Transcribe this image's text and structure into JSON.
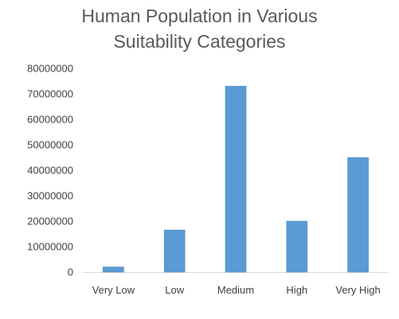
{
  "chart_data": {
    "type": "bar",
    "title_lines": [
      "Human Population in Various",
      "Suitability Categories"
    ],
    "categories": [
      "Very Low",
      "Low",
      "Medium",
      "High",
      "Very High"
    ],
    "values": [
      2000000,
      16500000,
      73000000,
      20000000,
      45000000
    ],
    "ylim": [
      0,
      80000000
    ],
    "yticks": [
      "0",
      "10000000",
      "20000000",
      "30000000",
      "40000000",
      "50000000",
      "60000000",
      "70000000",
      "80000000"
    ],
    "xlabel": "",
    "ylabel": "",
    "grid": false,
    "legend": "none",
    "bar_color": "#5b9bd5"
  }
}
